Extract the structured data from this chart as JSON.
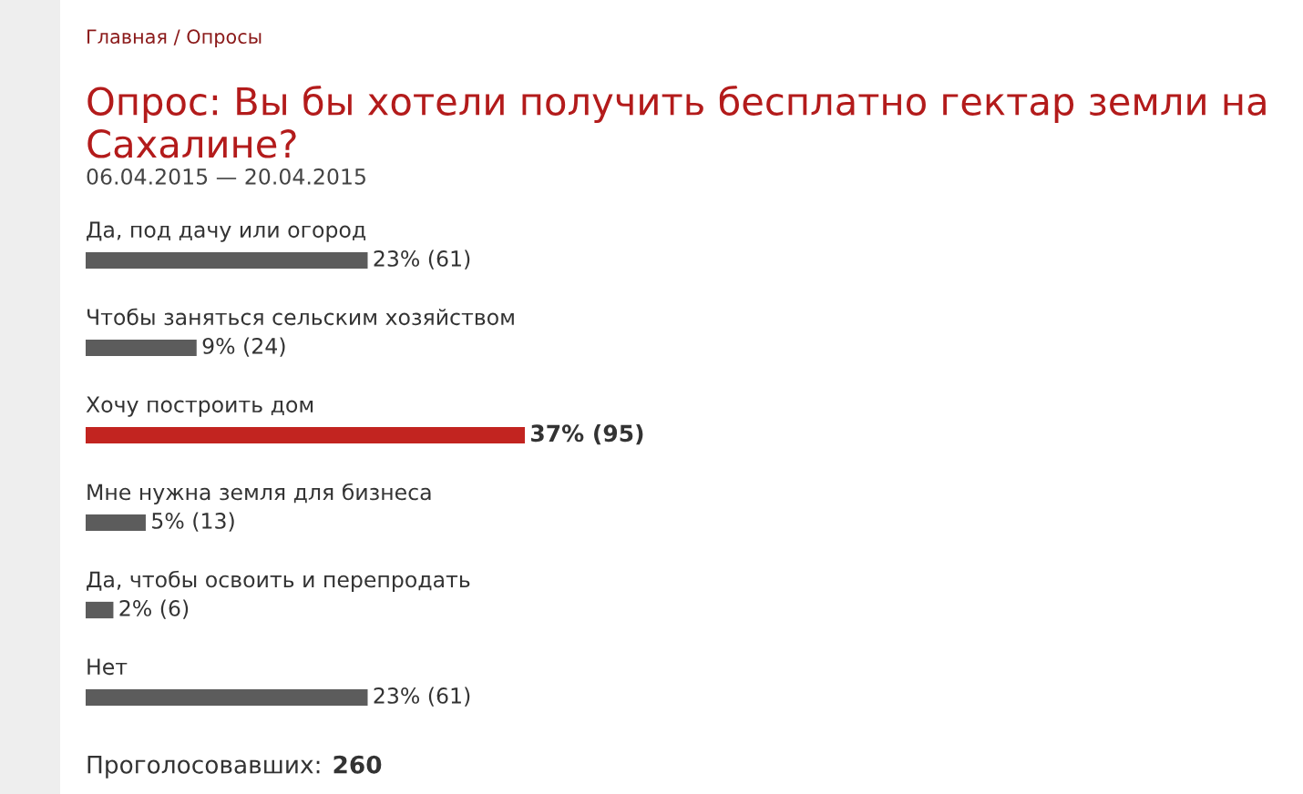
{
  "chart_data": {
    "type": "bar",
    "orientation": "horizontal",
    "title": "Опрос: Вы бы хотели получить бесплатно гектар земли на Сахалине?",
    "subtitle": "06.04.2015 — 20.04.2015",
    "annotations": [
      "Главная / Опросы",
      "Проголосовавших: 260"
    ],
    "categories": [
      "Да, под дачу или огород",
      "Чтобы заняться сельским хозяйством",
      "Хочу построить дом",
      "Мне нужна земля для бизнеса",
      "Да, чтобы освоить и перепродать",
      "Нет"
    ],
    "values": [
      61,
      24,
      95,
      13,
      6,
      61
    ],
    "value_labels": [
      "23% (61)",
      "9% (24)",
      "37% (95)",
      "5% (13)",
      "2% (6)",
      "23% (61)"
    ],
    "colors": [
      "#5c5c5c",
      "#5c5c5c",
      "#c22420",
      "#5c5c5c",
      "#5c5c5c",
      "#5c5c5c"
    ],
    "data_labels": false
  }
}
